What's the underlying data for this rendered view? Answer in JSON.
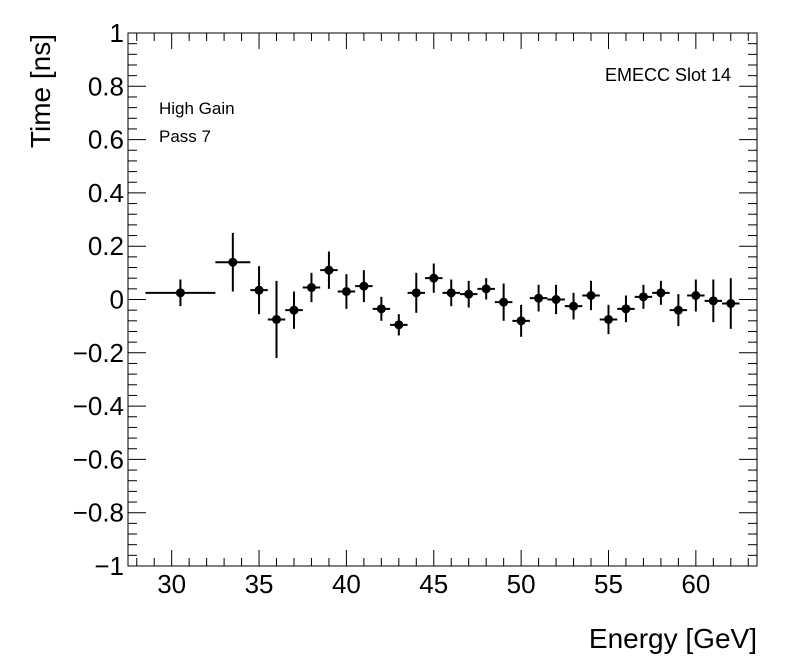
{
  "chart_data": {
    "type": "scatter",
    "title": "",
    "xlabel": "Energy [GeV]",
    "ylabel": "Time [ns]",
    "xlim": [
      27.5,
      63.5
    ],
    "ylim": [
      -1,
      1
    ],
    "x_ticks": [
      30,
      35,
      40,
      45,
      50,
      55,
      60
    ],
    "x_tick_labels": [
      "30",
      "35",
      "40",
      "45",
      "50",
      "55",
      "60"
    ],
    "y_ticks": [
      -1,
      -0.8,
      -0.6,
      -0.4,
      -0.2,
      0,
      0.2,
      0.4,
      0.6,
      0.8,
      1
    ],
    "y_tick_labels": [
      "−1",
      "−0.8",
      "−0.6",
      "−0.4",
      "−0.2",
      "0",
      "0.2",
      "0.4",
      "0.6",
      "0.8",
      "1"
    ],
    "grid": false,
    "annotations": {
      "gain": "High Gain",
      "pass": "Pass 7",
      "slot": "EMECC Slot 14"
    },
    "series": [
      {
        "name": "EMECC Slot 14",
        "points": [
          {
            "x": 30.5,
            "y": 0.025,
            "xerr": 2.0,
            "yerr": 0.05
          },
          {
            "x": 33.5,
            "y": 0.14,
            "xerr": 1.0,
            "yerr": 0.11
          },
          {
            "x": 35.0,
            "y": 0.035,
            "xerr": 0.5,
            "yerr": 0.09
          },
          {
            "x": 36.0,
            "y": -0.075,
            "xerr": 0.5,
            "yerr": 0.145
          },
          {
            "x": 37.0,
            "y": -0.04,
            "xerr": 0.5,
            "yerr": 0.07
          },
          {
            "x": 38.0,
            "y": 0.045,
            "xerr": 0.5,
            "yerr": 0.055
          },
          {
            "x": 39.0,
            "y": 0.11,
            "xerr": 0.5,
            "yerr": 0.07
          },
          {
            "x": 40.0,
            "y": 0.03,
            "xerr": 0.5,
            "yerr": 0.065
          },
          {
            "x": 41.0,
            "y": 0.05,
            "xerr": 0.5,
            "yerr": 0.06
          },
          {
            "x": 42.0,
            "y": -0.035,
            "xerr": 0.5,
            "yerr": 0.045
          },
          {
            "x": 43.0,
            "y": -0.095,
            "xerr": 0.5,
            "yerr": 0.04
          },
          {
            "x": 44.0,
            "y": 0.025,
            "xerr": 0.5,
            "yerr": 0.075
          },
          {
            "x": 45.0,
            "y": 0.08,
            "xerr": 0.5,
            "yerr": 0.055
          },
          {
            "x": 46.0,
            "y": 0.025,
            "xerr": 0.5,
            "yerr": 0.05
          },
          {
            "x": 47.0,
            "y": 0.02,
            "xerr": 0.5,
            "yerr": 0.05
          },
          {
            "x": 48.0,
            "y": 0.04,
            "xerr": 0.5,
            "yerr": 0.04
          },
          {
            "x": 49.0,
            "y": -0.01,
            "xerr": 0.5,
            "yerr": 0.07
          },
          {
            "x": 50.0,
            "y": -0.08,
            "xerr": 0.5,
            "yerr": 0.06
          },
          {
            "x": 51.0,
            "y": 0.005,
            "xerr": 0.5,
            "yerr": 0.05
          },
          {
            "x": 52.0,
            "y": 0.0,
            "xerr": 0.5,
            "yerr": 0.055
          },
          {
            "x": 53.0,
            "y": -0.025,
            "xerr": 0.5,
            "yerr": 0.05
          },
          {
            "x": 54.0,
            "y": 0.015,
            "xerr": 0.5,
            "yerr": 0.055
          },
          {
            "x": 55.0,
            "y": -0.075,
            "xerr": 0.5,
            "yerr": 0.055
          },
          {
            "x": 56.0,
            "y": -0.035,
            "xerr": 0.5,
            "yerr": 0.05
          },
          {
            "x": 57.0,
            "y": 0.01,
            "xerr": 0.5,
            "yerr": 0.045
          },
          {
            "x": 58.0,
            "y": 0.025,
            "xerr": 0.5,
            "yerr": 0.045
          },
          {
            "x": 59.0,
            "y": -0.04,
            "xerr": 0.5,
            "yerr": 0.06
          },
          {
            "x": 60.0,
            "y": 0.015,
            "xerr": 0.5,
            "yerr": 0.06
          },
          {
            "x": 61.0,
            "y": -0.005,
            "xerr": 0.5,
            "yerr": 0.08
          },
          {
            "x": 62.0,
            "y": -0.015,
            "xerr": 0.5,
            "yerr": 0.095
          }
        ]
      }
    ],
    "colors": {
      "marker": "#000000",
      "axis": "#000000",
      "background": "#ffffff"
    }
  }
}
